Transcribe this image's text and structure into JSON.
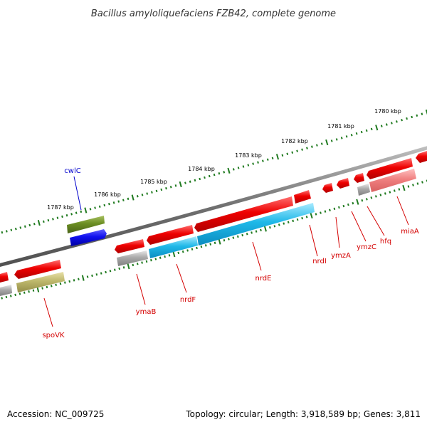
{
  "header": {
    "title": "Bacillus amyloliquefaciens FZB42, complete genome"
  },
  "footer": {
    "accession": "Accession: NC_009725",
    "topology": "Topology: circular; Length: 3,918,589 bp; Genes: 3,811"
  },
  "scale": {
    "kbp_labels": [
      "1780 kbp",
      "1781 kbp",
      "1782 kbp",
      "1783 kbp",
      "1784 kbp",
      "1785 kbp",
      "1786 kbp",
      "1787 kbp"
    ]
  },
  "genes": {
    "cwlC": "cwlC",
    "spoVK": "spoVK",
    "ymaB": "ymaB",
    "nrdF": "nrdF",
    "nrdE": "nrdE",
    "nrdI": "nrdI",
    "ymzA": "ymzA",
    "ymzC": "ymzC",
    "hfq": "hfq",
    "miaA": "miaA"
  },
  "colors": {
    "cds_red": "#ee0000",
    "cds_light_red": "#f08080",
    "rna_blue": "#1010ee",
    "cyan": "#1fb8e8",
    "olive": "#6b8e23",
    "khaki": "#bdb76b",
    "gray": "#a9a9a9",
    "tick_green": "#1f7a1f",
    "label_red": "#d40000",
    "label_blue": "#0000cc"
  }
}
